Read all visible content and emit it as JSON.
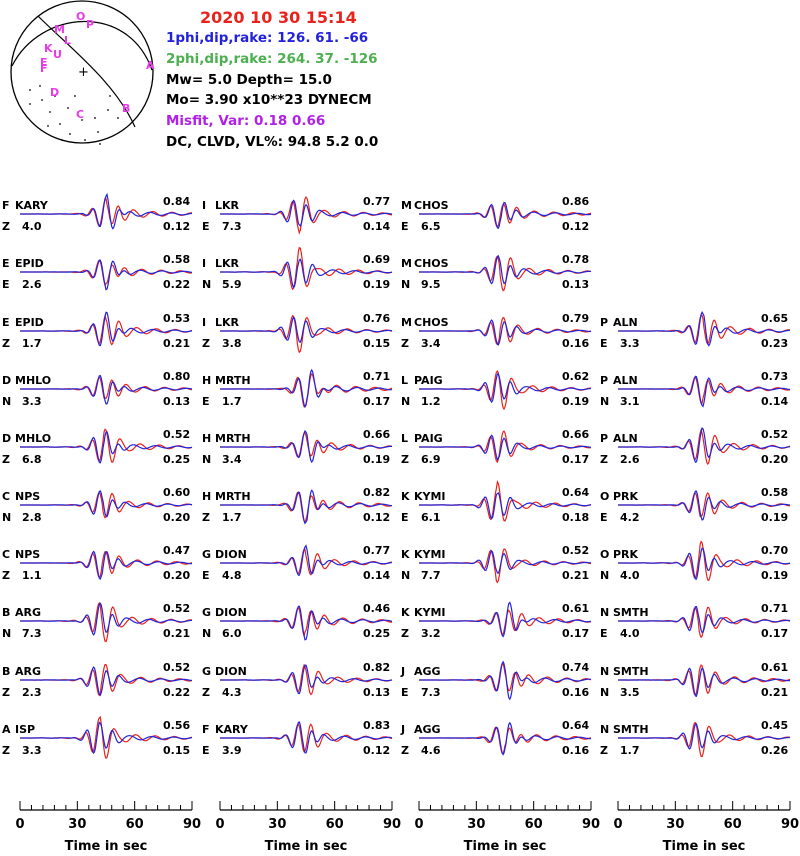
{
  "colors": {
    "observed": "#e8231b",
    "synthetic": "#2323d8",
    "beachball": "#e83be8",
    "title": "#e8231b",
    "plane1": "#2222dd",
    "plane2": "#4caf50",
    "misfit": "#b020e8"
  },
  "header": {
    "date_time": "2020 10 30    15:14",
    "plane1": "1phi,dip,rake: 126. 61.  -66",
    "plane2": "2phi,dip,rake: 264. 37. -126",
    "mw_depth": "Mw=  5.0    Depth=    15.0",
    "moment": "Mo=  3.90 x10**23 DYNECM",
    "misfit": "Misfit, Var:     0.18       0.66",
    "dc_clvd": "DC, CLVD, VL%:   94.8      5.2     0.0"
  },
  "beachball": {
    "station_labels": [
      "O",
      "P",
      "M",
      "L",
      "K",
      "U",
      "E",
      "F",
      "A",
      "D",
      "C",
      "B"
    ],
    "center_mark": "+"
  },
  "chart_data": {
    "type": "line",
    "xlabel": "Time  in sec",
    "xlim": [
      0,
      90
    ],
    "x_ticks": [
      "0",
      "30",
      "60",
      "90"
    ],
    "series_names": [
      "observed",
      "synthetic"
    ],
    "panels": [
      {
        "id": "F",
        "station": "KARY",
        "comp": "Z",
        "dist": "4.0",
        "cc": "0.84",
        "amp": "0.12",
        "col": 0,
        "row": 0
      },
      {
        "id": "E",
        "station": "EPID",
        "comp": "E",
        "dist": "2.6",
        "cc": "0.58",
        "amp": "0.22",
        "col": 0,
        "row": 1
      },
      {
        "id": "E",
        "station": "EPID",
        "comp": "Z",
        "dist": "1.7",
        "cc": "0.53",
        "amp": "0.21",
        "col": 0,
        "row": 2
      },
      {
        "id": "D",
        "station": "MHLO",
        "comp": "N",
        "dist": "3.3",
        "cc": "0.80",
        "amp": "0.13",
        "col": 0,
        "row": 3
      },
      {
        "id": "D",
        "station": "MHLO",
        "comp": "Z",
        "dist": "6.8",
        "cc": "0.52",
        "amp": "0.25",
        "col": 0,
        "row": 4
      },
      {
        "id": "C",
        "station": "NPS",
        "comp": "N",
        "dist": "2.8",
        "cc": "0.60",
        "amp": "0.20",
        "col": 0,
        "row": 5
      },
      {
        "id": "C",
        "station": "NPS",
        "comp": "Z",
        "dist": "1.1",
        "cc": "0.47",
        "amp": "0.20",
        "col": 0,
        "row": 6
      },
      {
        "id": "B",
        "station": "ARG",
        "comp": "N",
        "dist": "7.3",
        "cc": "0.52",
        "amp": "0.21",
        "col": 0,
        "row": 7
      },
      {
        "id": "B",
        "station": "ARG",
        "comp": "Z",
        "dist": "2.3",
        "cc": "0.52",
        "amp": "0.22",
        "col": 0,
        "row": 8
      },
      {
        "id": "A",
        "station": "ISP",
        "comp": "Z",
        "dist": "3.3",
        "cc": "0.56",
        "amp": "0.15",
        "col": 0,
        "row": 9
      },
      {
        "id": "I",
        "station": "LKR",
        "comp": "E",
        "dist": "7.3",
        "cc": "0.77",
        "amp": "0.14",
        "col": 1,
        "row": 0
      },
      {
        "id": "I",
        "station": "LKR",
        "comp": "N",
        "dist": "5.9",
        "cc": "0.69",
        "amp": "0.19",
        "col": 1,
        "row": 1
      },
      {
        "id": "I",
        "station": "LKR",
        "comp": "Z",
        "dist": "3.8",
        "cc": "0.76",
        "amp": "0.15",
        "col": 1,
        "row": 2
      },
      {
        "id": "H",
        "station": "MRTH",
        "comp": "E",
        "dist": "1.7",
        "cc": "0.71",
        "amp": "0.17",
        "col": 1,
        "row": 3
      },
      {
        "id": "H",
        "station": "MRTH",
        "comp": "N",
        "dist": "3.4",
        "cc": "0.66",
        "amp": "0.19",
        "col": 1,
        "row": 4
      },
      {
        "id": "H",
        "station": "MRTH",
        "comp": "Z",
        "dist": "1.7",
        "cc": "0.82",
        "amp": "0.12",
        "col": 1,
        "row": 5
      },
      {
        "id": "G",
        "station": "DION",
        "comp": "E",
        "dist": "4.8",
        "cc": "0.77",
        "amp": "0.14",
        "col": 1,
        "row": 6
      },
      {
        "id": "G",
        "station": "DION",
        "comp": "N",
        "dist": "6.0",
        "cc": "0.46",
        "amp": "0.25",
        "col": 1,
        "row": 7
      },
      {
        "id": "G",
        "station": "DION",
        "comp": "Z",
        "dist": "4.3",
        "cc": "0.82",
        "amp": "0.13",
        "col": 1,
        "row": 8
      },
      {
        "id": "F",
        "station": "KARY",
        "comp": "E",
        "dist": "3.9",
        "cc": "0.83",
        "amp": "0.12",
        "col": 1,
        "row": 9
      },
      {
        "id": "M",
        "station": "CHOS",
        "comp": "E",
        "dist": "6.5",
        "cc": "0.86",
        "amp": "0.12",
        "col": 2,
        "row": 0
      },
      {
        "id": "M",
        "station": "CHOS",
        "comp": "N",
        "dist": "9.5",
        "cc": "0.78",
        "amp": "0.13",
        "col": 2,
        "row": 1
      },
      {
        "id": "M",
        "station": "CHOS",
        "comp": "Z",
        "dist": "3.4",
        "cc": "0.79",
        "amp": "0.16",
        "col": 2,
        "row": 2
      },
      {
        "id": "L",
        "station": "PAIG",
        "comp": "N",
        "dist": "1.2",
        "cc": "0.62",
        "amp": "0.19",
        "col": 2,
        "row": 3
      },
      {
        "id": "L",
        "station": "PAIG",
        "comp": "Z",
        "dist": "6.9",
        "cc": "0.66",
        "amp": "0.17",
        "col": 2,
        "row": 4
      },
      {
        "id": "K",
        "station": "KYMI",
        "comp": "E",
        "dist": "6.1",
        "cc": "0.64",
        "amp": "0.18",
        "col": 2,
        "row": 5
      },
      {
        "id": "K",
        "station": "KYMI",
        "comp": "N",
        "dist": "7.7",
        "cc": "0.52",
        "amp": "0.21",
        "col": 2,
        "row": 6
      },
      {
        "id": "K",
        "station": "KYMI",
        "comp": "Z",
        "dist": "3.2",
        "cc": "0.61",
        "amp": "0.17",
        "col": 2,
        "row": 7
      },
      {
        "id": "J",
        "station": "AGG",
        "comp": "E",
        "dist": "7.3",
        "cc": "0.74",
        "amp": "0.16",
        "col": 2,
        "row": 8
      },
      {
        "id": "J",
        "station": "AGG",
        "comp": "Z",
        "dist": "4.6",
        "cc": "0.64",
        "amp": "0.16",
        "col": 2,
        "row": 9
      },
      {
        "id": "P",
        "station": "ALN",
        "comp": "E",
        "dist": "3.3",
        "cc": "0.65",
        "amp": "0.23",
        "col": 3,
        "row": 2
      },
      {
        "id": "P",
        "station": "ALN",
        "comp": "N",
        "dist": "3.1",
        "cc": "0.73",
        "amp": "0.14",
        "col": 3,
        "row": 3
      },
      {
        "id": "P",
        "station": "ALN",
        "comp": "Z",
        "dist": "2.6",
        "cc": "0.52",
        "amp": "0.20",
        "col": 3,
        "row": 4
      },
      {
        "id": "O",
        "station": "PRK",
        "comp": "E",
        "dist": "4.2",
        "cc": "0.58",
        "amp": "0.19",
        "col": 3,
        "row": 5
      },
      {
        "id": "O",
        "station": "PRK",
        "comp": "N",
        "dist": "4.0",
        "cc": "0.70",
        "amp": "0.19",
        "col": 3,
        "row": 6
      },
      {
        "id": "N",
        "station": "SMTH",
        "comp": "E",
        "dist": "4.0",
        "cc": "0.71",
        "amp": "0.17",
        "col": 3,
        "row": 7
      },
      {
        "id": "N",
        "station": "SMTH",
        "comp": "N",
        "dist": "3.5",
        "cc": "0.61",
        "amp": "0.21",
        "col": 3,
        "row": 8
      },
      {
        "id": "N",
        "station": "SMTH",
        "comp": "Z",
        "dist": "1.7",
        "cc": "0.45",
        "amp": "0.26",
        "col": 3,
        "row": 9
      }
    ]
  }
}
